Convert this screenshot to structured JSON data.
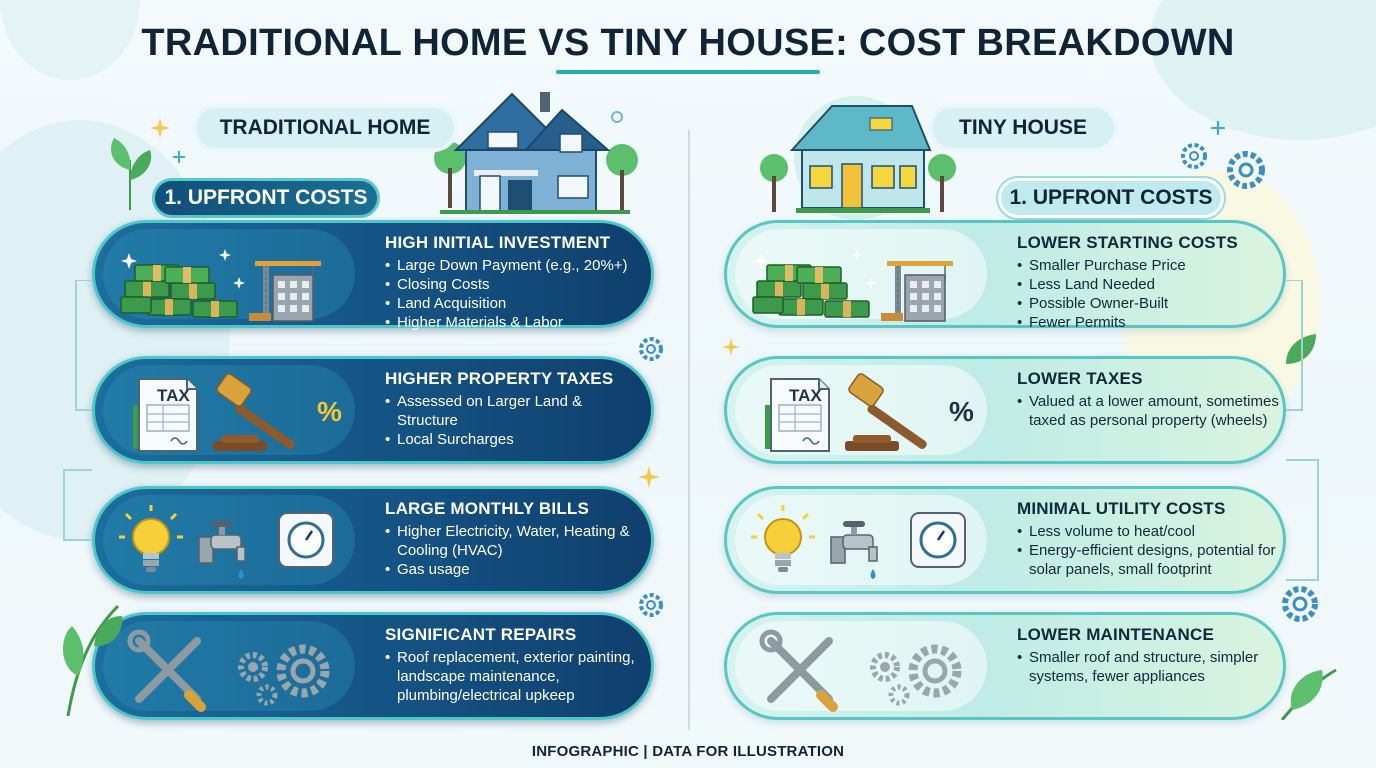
{
  "title": "TRADITIONAL HOME VS TINY HOUSE: COST BREAKDOWN",
  "footer": "INFOGRAPHIC | DATA FOR ILLUSTRATION",
  "colors": {
    "dark_card": "#16598a",
    "light_card": "#bfebe6",
    "accent": "#27a9b4",
    "money": "#3e9a4b"
  },
  "left": {
    "column_title": "TRADITIONAL HOME",
    "section_label": "1. UPFRONT COSTS",
    "cards": [
      {
        "icon": "money-and-construction-icon",
        "heading": "HIGH INITIAL INVESTMENT",
        "bullets": [
          "Large Down Payment (e.g., 20%+)",
          "Closing Costs",
          "Land Acquisition",
          "Higher Materials & Labor"
        ]
      },
      {
        "icon": "tax-gavel-icon",
        "heading": "HIGHER PROPERTY TAXES",
        "bullets": [
          "Assessed on Larger Land & Structure",
          "Local Surcharges"
        ]
      },
      {
        "icon": "utilities-icon",
        "heading": "LARGE MONTHLY BILLS",
        "bullets": [
          "Higher Electricity, Water, Heating & Cooling (HVAC)",
          "Gas usage"
        ]
      },
      {
        "icon": "tools-gears-icon",
        "heading": "SIGNIFICANT REPAIRS",
        "bullets": [
          "Roof replacement, exterior painting, landscape maintenance, plumbing/electrical upkeep"
        ]
      }
    ]
  },
  "right": {
    "column_title": "TINY HOUSE",
    "section_label": "1. UPFRONT COSTS",
    "cards": [
      {
        "icon": "money-and-construction-icon",
        "heading": "LOWER STARTING COSTS",
        "bullets": [
          "Smaller Purchase Price",
          "Less Land Needed",
          "Possible Owner-Built",
          "Fewer Permits"
        ]
      },
      {
        "icon": "tax-gavel-icon",
        "heading": "LOWER TAXES",
        "bullets": [
          "Valued at a lower amount, sometimes taxed as personal property (wheels)"
        ]
      },
      {
        "icon": "utilities-icon",
        "heading": "MINIMAL UTILITY COSTS",
        "bullets": [
          "Less volume to heat/cool",
          "Energy-efficient designs, potential for solar panels, small footprint"
        ]
      },
      {
        "icon": "tools-gears-icon",
        "heading": "LOWER MAINTENANCE",
        "bullets": [
          "Smaller roof and structure, simpler systems, fewer appliances"
        ]
      }
    ]
  },
  "icon_text": {
    "tax": "TAX",
    "percent": "%"
  }
}
